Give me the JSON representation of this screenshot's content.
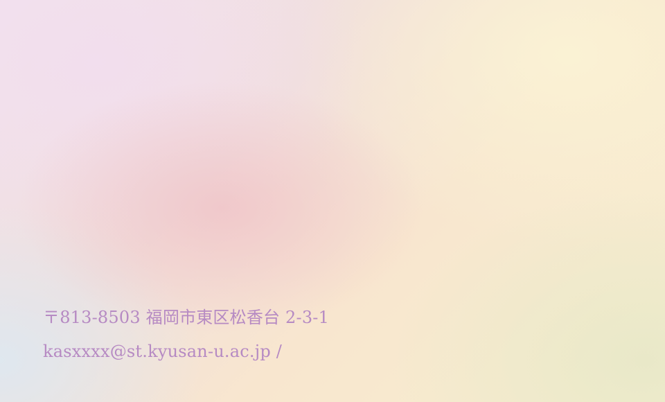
{
  "contact": {
    "address": "〒813-8503 福岡市東区松香台 2-3-1",
    "email": "kasxxxx@st.kyusan-u.ac.jp /"
  },
  "colors": {
    "text": "#b68ac3"
  }
}
